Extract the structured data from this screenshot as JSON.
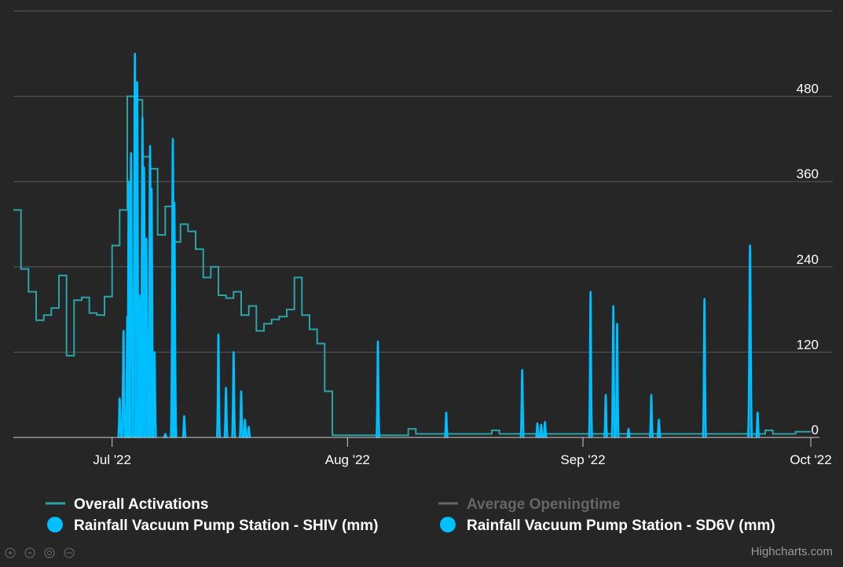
{
  "chart_data": {
    "type": "line",
    "title": "",
    "xlabel": "",
    "ylabel": "",
    "x_range": [
      "2022-06-18",
      "2022-10-01"
    ],
    "x_ticks": [
      {
        "date": "2022-07-01",
        "label": "Jul '22"
      },
      {
        "date": "2022-08-01",
        "label": "Aug '22"
      },
      {
        "date": "2022-09-01",
        "label": "Sep '22"
      },
      {
        "date": "2022-10-01",
        "label": "Oct '22"
      }
    ],
    "y_axis": {
      "position": "right",
      "range": [
        0,
        600
      ],
      "ticks": [
        0,
        120,
        240,
        360,
        480
      ]
    },
    "grid": true,
    "legend_placement": "bottom",
    "series": [
      {
        "name": "Overall Activations",
        "kind": "step",
        "color": "#2aa3ab",
        "visible": true,
        "points": [
          [
            "2022-06-18",
            320
          ],
          [
            "2022-06-19",
            237
          ],
          [
            "2022-06-20",
            205
          ],
          [
            "2022-06-21",
            165
          ],
          [
            "2022-06-22",
            172
          ],
          [
            "2022-06-23",
            182
          ],
          [
            "2022-06-24",
            228
          ],
          [
            "2022-06-25",
            115
          ],
          [
            "2022-06-26",
            193
          ],
          [
            "2022-06-27",
            197
          ],
          [
            "2022-06-28",
            175
          ],
          [
            "2022-06-29",
            172
          ],
          [
            "2022-06-30",
            198
          ],
          [
            "2022-07-01",
            270
          ],
          [
            "2022-07-02",
            320
          ],
          [
            "2022-07-03",
            480
          ],
          [
            "2022-07-04",
            475
          ],
          [
            "2022-07-05",
            395
          ],
          [
            "2022-07-06",
            378
          ],
          [
            "2022-07-07",
            285
          ],
          [
            "2022-07-08",
            325
          ],
          [
            "2022-07-09",
            275
          ],
          [
            "2022-07-10",
            300
          ],
          [
            "2022-07-11",
            290
          ],
          [
            "2022-07-12",
            265
          ],
          [
            "2022-07-13",
            225
          ],
          [
            "2022-07-14",
            240
          ],
          [
            "2022-07-15",
            200
          ],
          [
            "2022-07-16",
            196
          ],
          [
            "2022-07-17",
            205
          ],
          [
            "2022-07-18",
            172
          ],
          [
            "2022-07-19",
            185
          ],
          [
            "2022-07-20",
            150
          ],
          [
            "2022-07-21",
            160
          ],
          [
            "2022-07-22",
            166
          ],
          [
            "2022-07-23",
            170
          ],
          [
            "2022-07-24",
            180
          ],
          [
            "2022-07-25",
            225
          ],
          [
            "2022-07-26",
            172
          ],
          [
            "2022-07-27",
            152
          ],
          [
            "2022-07-28",
            132
          ],
          [
            "2022-07-29",
            65
          ],
          [
            "2022-07-30",
            3
          ],
          [
            "2022-08-08",
            3
          ],
          [
            "2022-08-09",
            12
          ],
          [
            "2022-08-10",
            5
          ],
          [
            "2022-08-20",
            10
          ],
          [
            "2022-08-21",
            5
          ],
          [
            "2022-09-25",
            10
          ],
          [
            "2022-09-26",
            5
          ],
          [
            "2022-09-29",
            8
          ],
          [
            "2022-10-01",
            8
          ]
        ]
      },
      {
        "name": "Average Openingtime",
        "kind": "line",
        "color": "#666666",
        "visible": false,
        "points": []
      },
      {
        "name": "Rainfall Vacuum Pump Station - SHIV (mm)",
        "kind": "spikes",
        "color": "#00bfff",
        "visible": true,
        "points": [
          [
            "2022-07-02",
            55
          ],
          [
            "2022-07-03",
            170
          ],
          [
            "2022-07-03.5",
            400
          ],
          [
            "2022-07-04",
            540
          ],
          [
            "2022-07-04.6",
            200
          ],
          [
            "2022-07-05",
            450
          ],
          [
            "2022-07-05.5",
            280
          ],
          [
            "2022-07-06",
            410
          ],
          [
            "2022-07-06.6",
            120
          ],
          [
            "2022-07-08",
            5
          ],
          [
            "2022-07-09",
            420
          ],
          [
            "2022-07-10.5",
            30
          ],
          [
            "2022-07-15",
            145
          ],
          [
            "2022-07-17",
            120
          ],
          [
            "2022-07-18",
            65
          ],
          [
            "2022-07-19",
            15
          ],
          [
            "2022-08-05",
            135
          ],
          [
            "2022-08-14",
            35
          ],
          [
            "2022-08-24",
            95
          ],
          [
            "2022-08-26",
            20
          ],
          [
            "2022-08-27",
            22
          ],
          [
            "2022-09-02",
            205
          ],
          [
            "2022-09-04",
            60
          ],
          [
            "2022-09-05",
            185
          ],
          [
            "2022-09-07",
            12
          ],
          [
            "2022-09-10",
            60
          ],
          [
            "2022-09-17",
            195
          ],
          [
            "2022-09-23",
            270
          ],
          [
            "2022-09-24",
            35
          ]
        ]
      },
      {
        "name": "Rainfall Vacuum Pump Station - SD6V (mm)",
        "kind": "spikes",
        "color": "#00bfff",
        "visible": true,
        "points": [
          [
            "2022-07-02.5",
            150
          ],
          [
            "2022-07-03.2",
            360
          ],
          [
            "2022-07-04.3",
            500
          ],
          [
            "2022-07-05.2",
            380
          ],
          [
            "2022-07-06.2",
            350
          ],
          [
            "2022-07-09.2",
            330
          ],
          [
            "2022-07-16",
            70
          ],
          [
            "2022-07-18.5",
            25
          ],
          [
            "2022-08-26.5",
            18
          ],
          [
            "2022-09-05.5",
            160
          ],
          [
            "2022-09-11",
            25
          ]
        ]
      }
    ]
  },
  "credits": "Highcharts.com",
  "toolbar": {
    "icons": [
      "zoom-in-icon",
      "zoom-out-icon",
      "reset-icon",
      "more-icon"
    ]
  }
}
